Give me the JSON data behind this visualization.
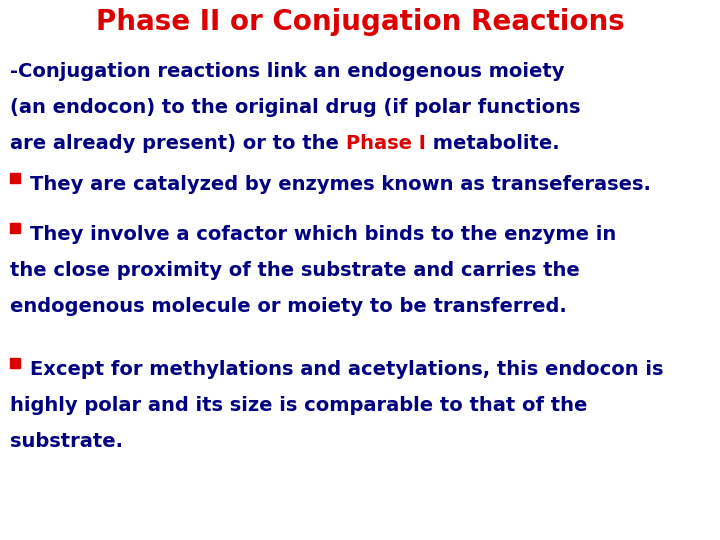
{
  "background_color": "#ffffff",
  "title": "Phase II or Conjugation Reactions",
  "title_color": "#dd0000",
  "title_fontsize": 20,
  "body_color": "#000080",
  "body_fontsize": 14,
  "highlight_color": "#dd0000",
  "bullet_color": "#dd0000",
  "intro_line1": "-Conjugation reactions link an endogenous moiety",
  "intro_line2": "(an endocon) to the original drug (if polar functions",
  "intro_line3_before": "are already present) or to the ",
  "intro_highlight": "Phase I",
  "intro_line3_after": " metabolite.",
  "b1_text": "They are catalyzed by enzymes known as transeferases.",
  "b2_line1": "They involve a cofactor which binds to the enzyme in",
  "b2_line2": "the close proximity of the substrate and carries the",
  "b2_line3": "endogenous molecule or moiety to be transferred.",
  "b3_line1": "Except for methylations and acetylations, this endocon is",
  "b3_line2": "highly polar and its size is comparable to that of the",
  "b3_line3": "substrate."
}
